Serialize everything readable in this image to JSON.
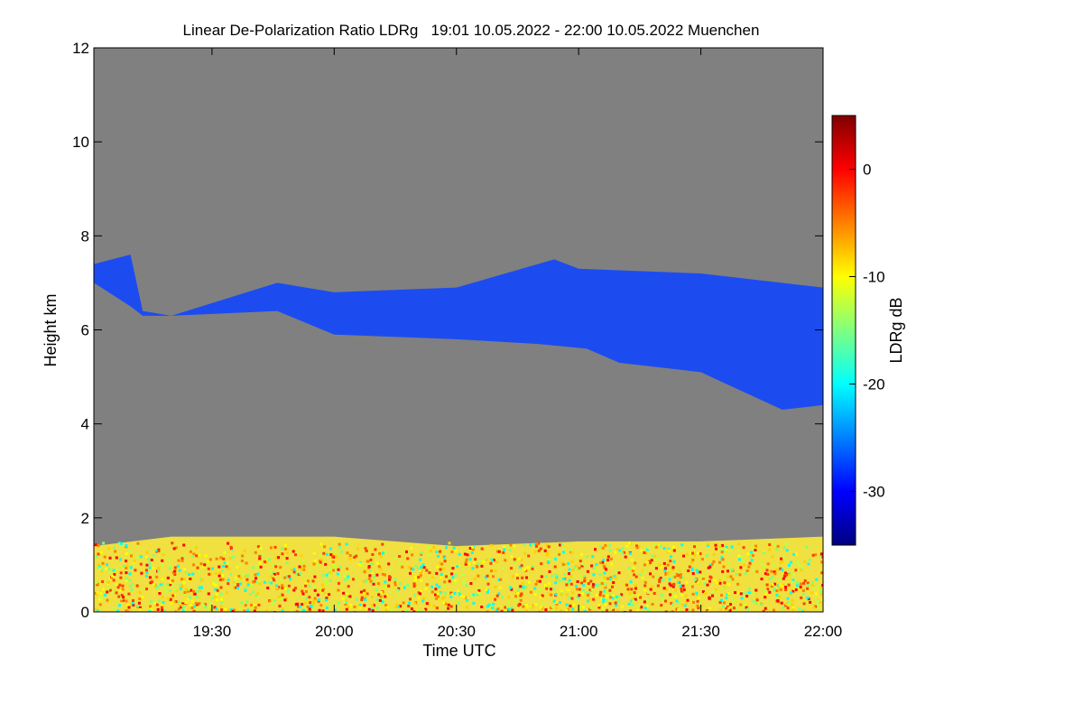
{
  "chart_data": {
    "type": "heatmap",
    "title": "Linear De-Polarization Ratio LDRg   19:01 10.05.2022 - 22:00 10.05.2022 Muenchen",
    "xlabel": "Time UTC",
    "ylabel": "Height km",
    "x_range_minutes_utc": [
      1141,
      1320
    ],
    "x_ticks": [
      {
        "minute": 1170,
        "label": "19:30"
      },
      {
        "minute": 1200,
        "label": "20:00"
      },
      {
        "minute": 1230,
        "label": "20:30"
      },
      {
        "minute": 1260,
        "label": "21:00"
      },
      {
        "minute": 1290,
        "label": "21:30"
      },
      {
        "minute": 1320,
        "label": "22:00"
      }
    ],
    "ylim": [
      0,
      12
    ],
    "y_ticks": [
      {
        "value": 0,
        "label": "0"
      },
      {
        "value": 2,
        "label": "2"
      },
      {
        "value": 4,
        "label": "4"
      },
      {
        "value": 6,
        "label": "6"
      },
      {
        "value": 8,
        "label": "8"
      },
      {
        "value": 10,
        "label": "10"
      },
      {
        "value": 12,
        "label": "12"
      }
    ],
    "colorbar": {
      "label": "LDRg dB",
      "range": [
        -35,
        5
      ],
      "ticks": [
        {
          "value": 0,
          "label": "0"
        },
        {
          "value": -10,
          "label": "-10"
        },
        {
          "value": -20,
          "label": "-20"
        },
        {
          "value": -30,
          "label": "-30"
        }
      ],
      "colors": [
        "#000080",
        "#0000ff",
        "#0080ff",
        "#00ffff",
        "#80ff80",
        "#ffff00",
        "#ff8000",
        "#ff0000",
        "#800000"
      ]
    },
    "background_color": "#808080",
    "features": [
      {
        "name": "cirrus-layer",
        "ldr_db": -29,
        "color": "#1c4cf0",
        "top_km": [
          [
            1141,
            7.4
          ],
          [
            1150,
            7.6
          ],
          [
            1153,
            6.4
          ],
          [
            1160,
            6.3
          ],
          [
            1186,
            7.0
          ],
          [
            1200,
            6.8
          ],
          [
            1230,
            6.9
          ],
          [
            1254,
            7.5
          ],
          [
            1260,
            7.3
          ],
          [
            1290,
            7.2
          ],
          [
            1320,
            6.9
          ]
        ],
        "base_km": [
          [
            1141,
            7.0
          ],
          [
            1150,
            6.5
          ],
          [
            1153,
            6.3
          ],
          [
            1160,
            6.3
          ],
          [
            1186,
            6.4
          ],
          [
            1200,
            5.9
          ],
          [
            1230,
            5.8
          ],
          [
            1250,
            5.7
          ],
          [
            1262,
            5.6
          ],
          [
            1270,
            5.3
          ],
          [
            1290,
            5.1
          ],
          [
            1300,
            4.7
          ],
          [
            1310,
            4.3
          ],
          [
            1320,
            4.4
          ]
        ]
      },
      {
        "name": "boundary-layer-aerosol",
        "ldr_db": -8,
        "color": "#f0e040",
        "top_km": [
          [
            1141,
            1.4
          ],
          [
            1160,
            1.6
          ],
          [
            1200,
            1.6
          ],
          [
            1230,
            1.4
          ],
          [
            1260,
            1.5
          ],
          [
            1290,
            1.5
          ],
          [
            1320,
            1.6
          ]
        ],
        "base_km": [
          [
            1141,
            0.0
          ],
          [
            1320,
            0.0
          ]
        ]
      }
    ]
  }
}
